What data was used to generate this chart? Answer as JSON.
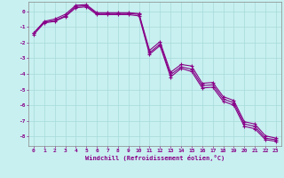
{
  "background_color": "#c8f0f0",
  "grid_color": "#a8dada",
  "line_color": "#880088",
  "title": "",
  "xlabel": "Windchill (Refroidissement éolien,°C)",
  "xlabel_color": "#880088",
  "tick_color": "#880088",
  "xlim": [
    -0.5,
    23.5
  ],
  "ylim": [
    -8.6,
    0.6
  ],
  "yticks": [
    0,
    -1,
    -2,
    -3,
    -4,
    -5,
    -6,
    -7,
    -8
  ],
  "xticks": [
    0,
    1,
    2,
    3,
    4,
    5,
    6,
    7,
    8,
    9,
    10,
    11,
    12,
    13,
    14,
    15,
    16,
    17,
    18,
    19,
    20,
    21,
    22,
    23
  ],
  "series1_x": [
    0,
    1,
    2,
    3,
    4,
    5,
    6,
    7,
    8,
    9,
    10,
    11,
    12,
    13,
    14,
    15,
    16,
    17,
    18,
    19,
    20,
    21,
    22,
    23
  ],
  "series1_y": [
    -1.4,
    -0.7,
    -0.6,
    -0.3,
    0.3,
    0.35,
    -0.15,
    -0.15,
    -0.15,
    -0.15,
    -0.2,
    -2.65,
    -2.1,
    -4.05,
    -3.55,
    -3.7,
    -4.75,
    -4.7,
    -5.6,
    -5.85,
    -7.2,
    -7.35,
    -8.1,
    -8.2
  ],
  "series2_x": [
    0,
    1,
    2,
    3,
    4,
    5,
    6,
    7,
    8,
    9,
    10,
    11,
    12,
    13,
    14,
    15,
    16,
    17,
    18,
    19,
    20,
    21,
    22,
    23
  ],
  "series2_y": [
    -1.4,
    -0.65,
    -0.5,
    -0.2,
    0.38,
    0.42,
    -0.1,
    -0.1,
    -0.1,
    -0.1,
    -0.15,
    -2.5,
    -1.95,
    -3.9,
    -3.4,
    -3.5,
    -4.6,
    -4.55,
    -5.45,
    -5.7,
    -7.05,
    -7.2,
    -7.95,
    -8.1
  ],
  "series3_x": [
    0,
    1,
    2,
    3,
    4,
    5,
    6,
    7,
    8,
    9,
    10,
    11,
    12,
    13,
    14,
    15,
    16,
    17,
    18,
    19,
    20,
    21,
    22,
    23
  ],
  "series3_y": [
    -1.5,
    -0.75,
    -0.65,
    -0.35,
    0.22,
    0.28,
    -0.22,
    -0.22,
    -0.22,
    -0.22,
    -0.3,
    -2.75,
    -2.2,
    -4.2,
    -3.65,
    -3.85,
    -4.9,
    -4.85,
    -5.75,
    -6.0,
    -7.35,
    -7.5,
    -8.2,
    -8.3
  ]
}
